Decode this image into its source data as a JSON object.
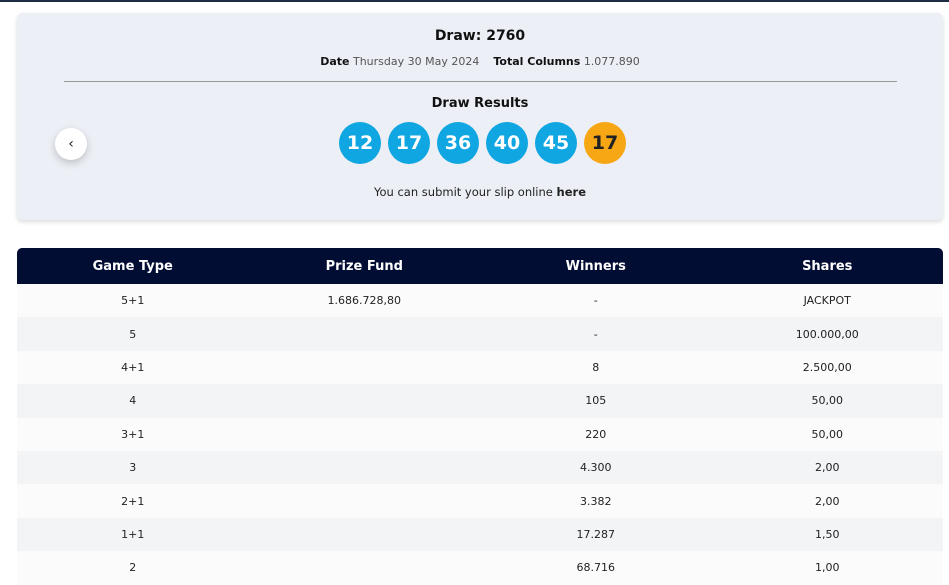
{
  "draw": {
    "label": "Draw:",
    "number": "2760",
    "date_label": "Date",
    "date": "Thursday 30 May 2024",
    "columns_label": "Total Columns",
    "columns": "1.077.890"
  },
  "results": {
    "title": "Draw Results",
    "numbers": [
      "12",
      "17",
      "36",
      "40",
      "45"
    ],
    "bonus": "17",
    "colors": {
      "main": "#10a6e2",
      "bonus": "#f7a614"
    }
  },
  "slip": {
    "text": "You can submit your slip online ",
    "link": "here"
  },
  "nav": {
    "prev_icon": "chevron-left-icon",
    "prev_glyph": "‹"
  },
  "table": {
    "headers": [
      "Game Type",
      "Prize Fund",
      "Winners",
      "Shares"
    ],
    "rows": [
      [
        "5+1",
        "1.686.728,80",
        "-",
        "JACKPOT"
      ],
      [
        "5",
        "",
        "-",
        "100.000,00"
      ],
      [
        "4+1",
        "",
        "8",
        "2.500,00"
      ],
      [
        "4",
        "",
        "105",
        "50,00"
      ],
      [
        "3+1",
        "",
        "220",
        "50,00"
      ],
      [
        "3",
        "",
        "4.300",
        "2,00"
      ],
      [
        "2+1",
        "",
        "3.382",
        "2,00"
      ],
      [
        "1+1",
        "",
        "17.287",
        "1,50"
      ],
      [
        "2",
        "",
        "68.716",
        "1,00"
      ]
    ]
  }
}
